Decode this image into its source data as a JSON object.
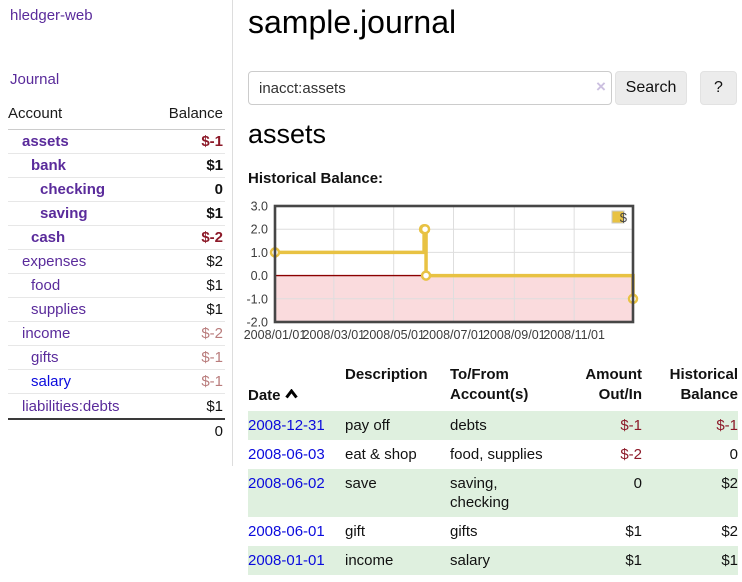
{
  "sidebar": {
    "app_title": "hledger-web",
    "journal_label": "Journal",
    "accounts_table": {
      "headers": {
        "account": "Account",
        "balance": "Balance"
      },
      "rows": [
        {
          "name": "assets",
          "balance": "$-1",
          "indent": 0,
          "bold": true,
          "link_color": "purple",
          "balance_class": "bal-neg"
        },
        {
          "name": "bank",
          "balance": "$1",
          "indent": 1,
          "bold": true,
          "link_color": "purple",
          "balance_class": "bal-pos"
        },
        {
          "name": "checking",
          "balance": "0",
          "indent": 2,
          "bold": true,
          "link_color": "purple",
          "balance_class": "bal-pos"
        },
        {
          "name": "saving",
          "balance": "$1",
          "indent": 2,
          "bold": true,
          "link_color": "purple",
          "balance_class": "bal-pos"
        },
        {
          "name": "cash",
          "balance": "$-2",
          "indent": 1,
          "bold": true,
          "link_color": "purple",
          "balance_class": "bal-neg"
        },
        {
          "name": "expenses",
          "balance": "$2",
          "indent": 0,
          "bold": false,
          "link_color": "purple",
          "balance_class": "bal-pos"
        },
        {
          "name": "food",
          "balance": "$1",
          "indent": 1,
          "bold": false,
          "link_color": "purple",
          "balance_class": "bal-pos"
        },
        {
          "name": "supplies",
          "balance": "$1",
          "indent": 1,
          "bold": false,
          "link_color": "purple",
          "balance_class": "bal-pos"
        },
        {
          "name": "income",
          "balance": "$-2",
          "indent": 0,
          "bold": false,
          "link_color": "purple",
          "balance_class": "bal-neg-muted"
        },
        {
          "name": "gifts",
          "balance": "$-1",
          "indent": 1,
          "bold": false,
          "link_color": "purple",
          "balance_class": "bal-neg-muted"
        },
        {
          "name": "salary",
          "balance": "$-1",
          "indent": 1,
          "bold": false,
          "link_color": "blue",
          "balance_class": "bal-neg-muted"
        },
        {
          "name": "liabilities:debts",
          "balance": "$1",
          "indent": 0,
          "bold": false,
          "link_color": "purple",
          "balance_class": "bal-pos"
        }
      ],
      "total": "0"
    }
  },
  "main": {
    "title": "sample.journal",
    "search": {
      "value": "inacct:assets",
      "clear_icon": "×",
      "button_label": "Search",
      "help_label": "?"
    },
    "account_heading": "assets",
    "chart_heading": "Historical Balance:",
    "transactions": {
      "headers": {
        "date": "Date",
        "sort_icon": "chevron-up",
        "description": "Description",
        "accounts": "To/From\nAccount(s)",
        "amount": "Amount\nOut/In",
        "balance": "Historical\nBalance"
      },
      "rows": [
        {
          "date": "2008-12-31",
          "description": "pay off",
          "accounts": "debts",
          "amount": "$-1",
          "amount_neg": true,
          "balance": "$-1",
          "balance_neg": true
        },
        {
          "date": "2008-06-03",
          "description": "eat & shop",
          "accounts": "food, supplies",
          "amount": "$-2",
          "amount_neg": true,
          "balance": "0",
          "balance_neg": false
        },
        {
          "date": "2008-06-02",
          "description": "save",
          "accounts": "saving,\nchecking",
          "amount": "0",
          "amount_neg": false,
          "balance": "$2",
          "balance_neg": false
        },
        {
          "date": "2008-06-01",
          "description": "gift",
          "accounts": "gifts",
          "amount": "$1",
          "amount_neg": false,
          "balance": "$2",
          "balance_neg": false
        },
        {
          "date": "2008-01-01",
          "description": "income",
          "accounts": "salary",
          "amount": "$1",
          "amount_neg": false,
          "balance": "$1",
          "balance_neg": false
        }
      ]
    }
  },
  "chart_data": {
    "type": "line",
    "step": true,
    "title": "Historical Balance:",
    "series": [
      {
        "name": "$",
        "color": "#E8C243",
        "points": [
          {
            "date": "2008-01-01",
            "day": 0,
            "value": 1
          },
          {
            "date": "2008-06-01",
            "day": 152,
            "value": 2
          },
          {
            "date": "2008-06-02",
            "day": 153,
            "value": 2
          },
          {
            "date": "2008-06-03",
            "day": 154,
            "value": 0
          },
          {
            "date": "2008-12-31",
            "day": 365,
            "value": -1
          }
        ]
      }
    ],
    "x_range": [
      0,
      365
    ],
    "x_ticks": [
      {
        "day": 0,
        "label": "2008/01/01"
      },
      {
        "day": 60,
        "label": "2008/03/01"
      },
      {
        "day": 121,
        "label": "2008/05/01"
      },
      {
        "day": 182,
        "label": "2008/07/01"
      },
      {
        "day": 244,
        "label": "2008/09/01"
      },
      {
        "day": 305,
        "label": "2008/11/01"
      }
    ],
    "ylim": [
      -2,
      3
    ],
    "y_ticks": [
      {
        "v": 3,
        "label": "3.0"
      },
      {
        "v": 2,
        "label": "2.0"
      },
      {
        "v": 1,
        "label": "1.0"
      },
      {
        "v": 0,
        "label": "0.0"
      },
      {
        "v": -1,
        "label": "-1.0"
      },
      {
        "v": -2,
        "label": "-2.0"
      }
    ],
    "grid": true,
    "legend_position": "top-right",
    "colors": {
      "negative_region_fill": "#FADBDD",
      "zero_line": "#8b0000",
      "gridline": "#dedede",
      "plot_border": "#464646",
      "tick_text": "#3c3c3c"
    }
  },
  "colors": {
    "link_purple": "#5a2b9b",
    "link_blue": "#0b0bdd",
    "negative_bold": "#8c1928",
    "negative_muted": "#b97c7c",
    "row_stripe_green": "#dff0df",
    "sidebar_divider": "#dddddd"
  }
}
